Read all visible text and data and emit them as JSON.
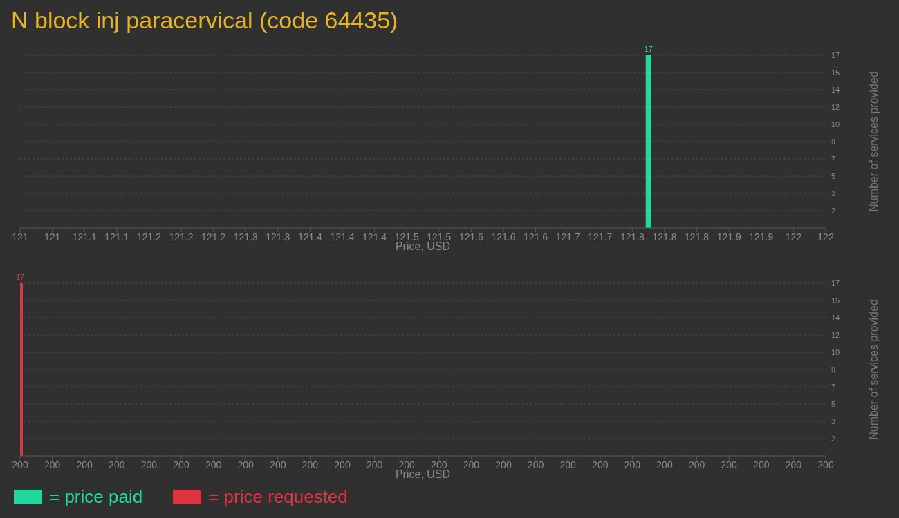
{
  "chart_data": [
    {
      "type": "bar",
      "title": "N block inj paracervical (code 64435)",
      "xlabel": "Price, USD",
      "ylabel": "Number of services provided",
      "x": [
        121.78
      ],
      "series": [
        {
          "name": "= price paid",
          "color": "#22d89e",
          "values": [
            17
          ]
        }
      ],
      "xlim": [
        121,
        122
      ],
      "xticks": [
        {
          "value": 121,
          "label": "121"
        },
        {
          "value": 121.04,
          "label": "121"
        },
        {
          "value": 121.08,
          "label": "121.1"
        },
        {
          "value": 121.12,
          "label": "121.1"
        },
        {
          "value": 121.16,
          "label": "121.2"
        },
        {
          "value": 121.2,
          "label": "121.2"
        },
        {
          "value": 121.24,
          "label": "121.2"
        },
        {
          "value": 121.28,
          "label": "121.3"
        },
        {
          "value": 121.32,
          "label": "121.3"
        },
        {
          "value": 121.36,
          "label": "121.4"
        },
        {
          "value": 121.4,
          "label": "121.4"
        },
        {
          "value": 121.44,
          "label": "121.4"
        },
        {
          "value": 121.48,
          "label": "121.5"
        },
        {
          "value": 121.52,
          "label": "121.5"
        },
        {
          "value": 121.56,
          "label": "121.6"
        },
        {
          "value": 121.6,
          "label": "121.6"
        },
        {
          "value": 121.64,
          "label": "121.6"
        },
        {
          "value": 121.68,
          "label": "121.7"
        },
        {
          "value": 121.72,
          "label": "121.7"
        },
        {
          "value": 121.76,
          "label": "121.8"
        },
        {
          "value": 121.8,
          "label": "121.8"
        },
        {
          "value": 121.84,
          "label": "121.8"
        },
        {
          "value": 121.88,
          "label": "121.9"
        },
        {
          "value": 121.92,
          "label": "121.9"
        },
        {
          "value": 121.96,
          "label": "122"
        },
        {
          "value": 122,
          "label": "122"
        }
      ],
      "ylim": [
        0,
        17
      ],
      "yticks": [
        {
          "value": 1.7,
          "label": "2"
        },
        {
          "value": 3.4,
          "label": "3"
        },
        {
          "value": 5.1,
          "label": "5"
        },
        {
          "value": 6.8,
          "label": "7"
        },
        {
          "value": 8.5,
          "label": "9"
        },
        {
          "value": 10.2,
          "label": "10"
        },
        {
          "value": 11.9,
          "label": "12"
        },
        {
          "value": 13.6,
          "label": "14"
        },
        {
          "value": 15.3,
          "label": "15"
        },
        {
          "value": 17,
          "label": "17"
        }
      ],
      "grid": "y",
      "data_labels": true,
      "legend": "bottom left"
    },
    {
      "type": "bar",
      "xlabel": "Price, USD",
      "ylabel": "Number of services provided",
      "x": [
        200
      ],
      "series": [
        {
          "name": "= price requested",
          "color": "#de3341",
          "values": [
            17
          ]
        }
      ],
      "xlim": [
        200,
        200.4
      ],
      "xticks": [
        {
          "value": 200,
          "label": "200"
        },
        {
          "value": 200.016,
          "label": "200"
        },
        {
          "value": 200.032,
          "label": "200"
        },
        {
          "value": 200.048,
          "label": "200"
        },
        {
          "value": 200.064,
          "label": "200"
        },
        {
          "value": 200.08,
          "label": "200"
        },
        {
          "value": 200.096,
          "label": "200"
        },
        {
          "value": 200.112,
          "label": "200"
        },
        {
          "value": 200.128,
          "label": "200"
        },
        {
          "value": 200.144,
          "label": "200"
        },
        {
          "value": 200.16,
          "label": "200"
        },
        {
          "value": 200.176,
          "label": "200"
        },
        {
          "value": 200.192,
          "label": "200"
        },
        {
          "value": 200.208,
          "label": "200"
        },
        {
          "value": 200.224,
          "label": "200"
        },
        {
          "value": 200.24,
          "label": "200"
        },
        {
          "value": 200.256,
          "label": "200"
        },
        {
          "value": 200.272,
          "label": "200"
        },
        {
          "value": 200.288,
          "label": "200"
        },
        {
          "value": 200.304,
          "label": "200"
        },
        {
          "value": 200.32,
          "label": "200"
        },
        {
          "value": 200.336,
          "label": "200"
        },
        {
          "value": 200.352,
          "label": "200"
        },
        {
          "value": 200.368,
          "label": "200"
        },
        {
          "value": 200.384,
          "label": "200"
        },
        {
          "value": 200.4,
          "label": "200"
        }
      ],
      "ylim": [
        0,
        17
      ],
      "yticks": [
        {
          "value": 1.7,
          "label": "2"
        },
        {
          "value": 3.4,
          "label": "3"
        },
        {
          "value": 5.1,
          "label": "5"
        },
        {
          "value": 6.8,
          "label": "7"
        },
        {
          "value": 8.5,
          "label": "9"
        },
        {
          "value": 10.2,
          "label": "10"
        },
        {
          "value": 11.9,
          "label": "12"
        },
        {
          "value": 13.6,
          "label": "14"
        },
        {
          "value": 15.3,
          "label": "15"
        },
        {
          "value": 17,
          "label": "17"
        }
      ],
      "grid": "y",
      "data_labels": true,
      "legend": "bottom left"
    }
  ]
}
